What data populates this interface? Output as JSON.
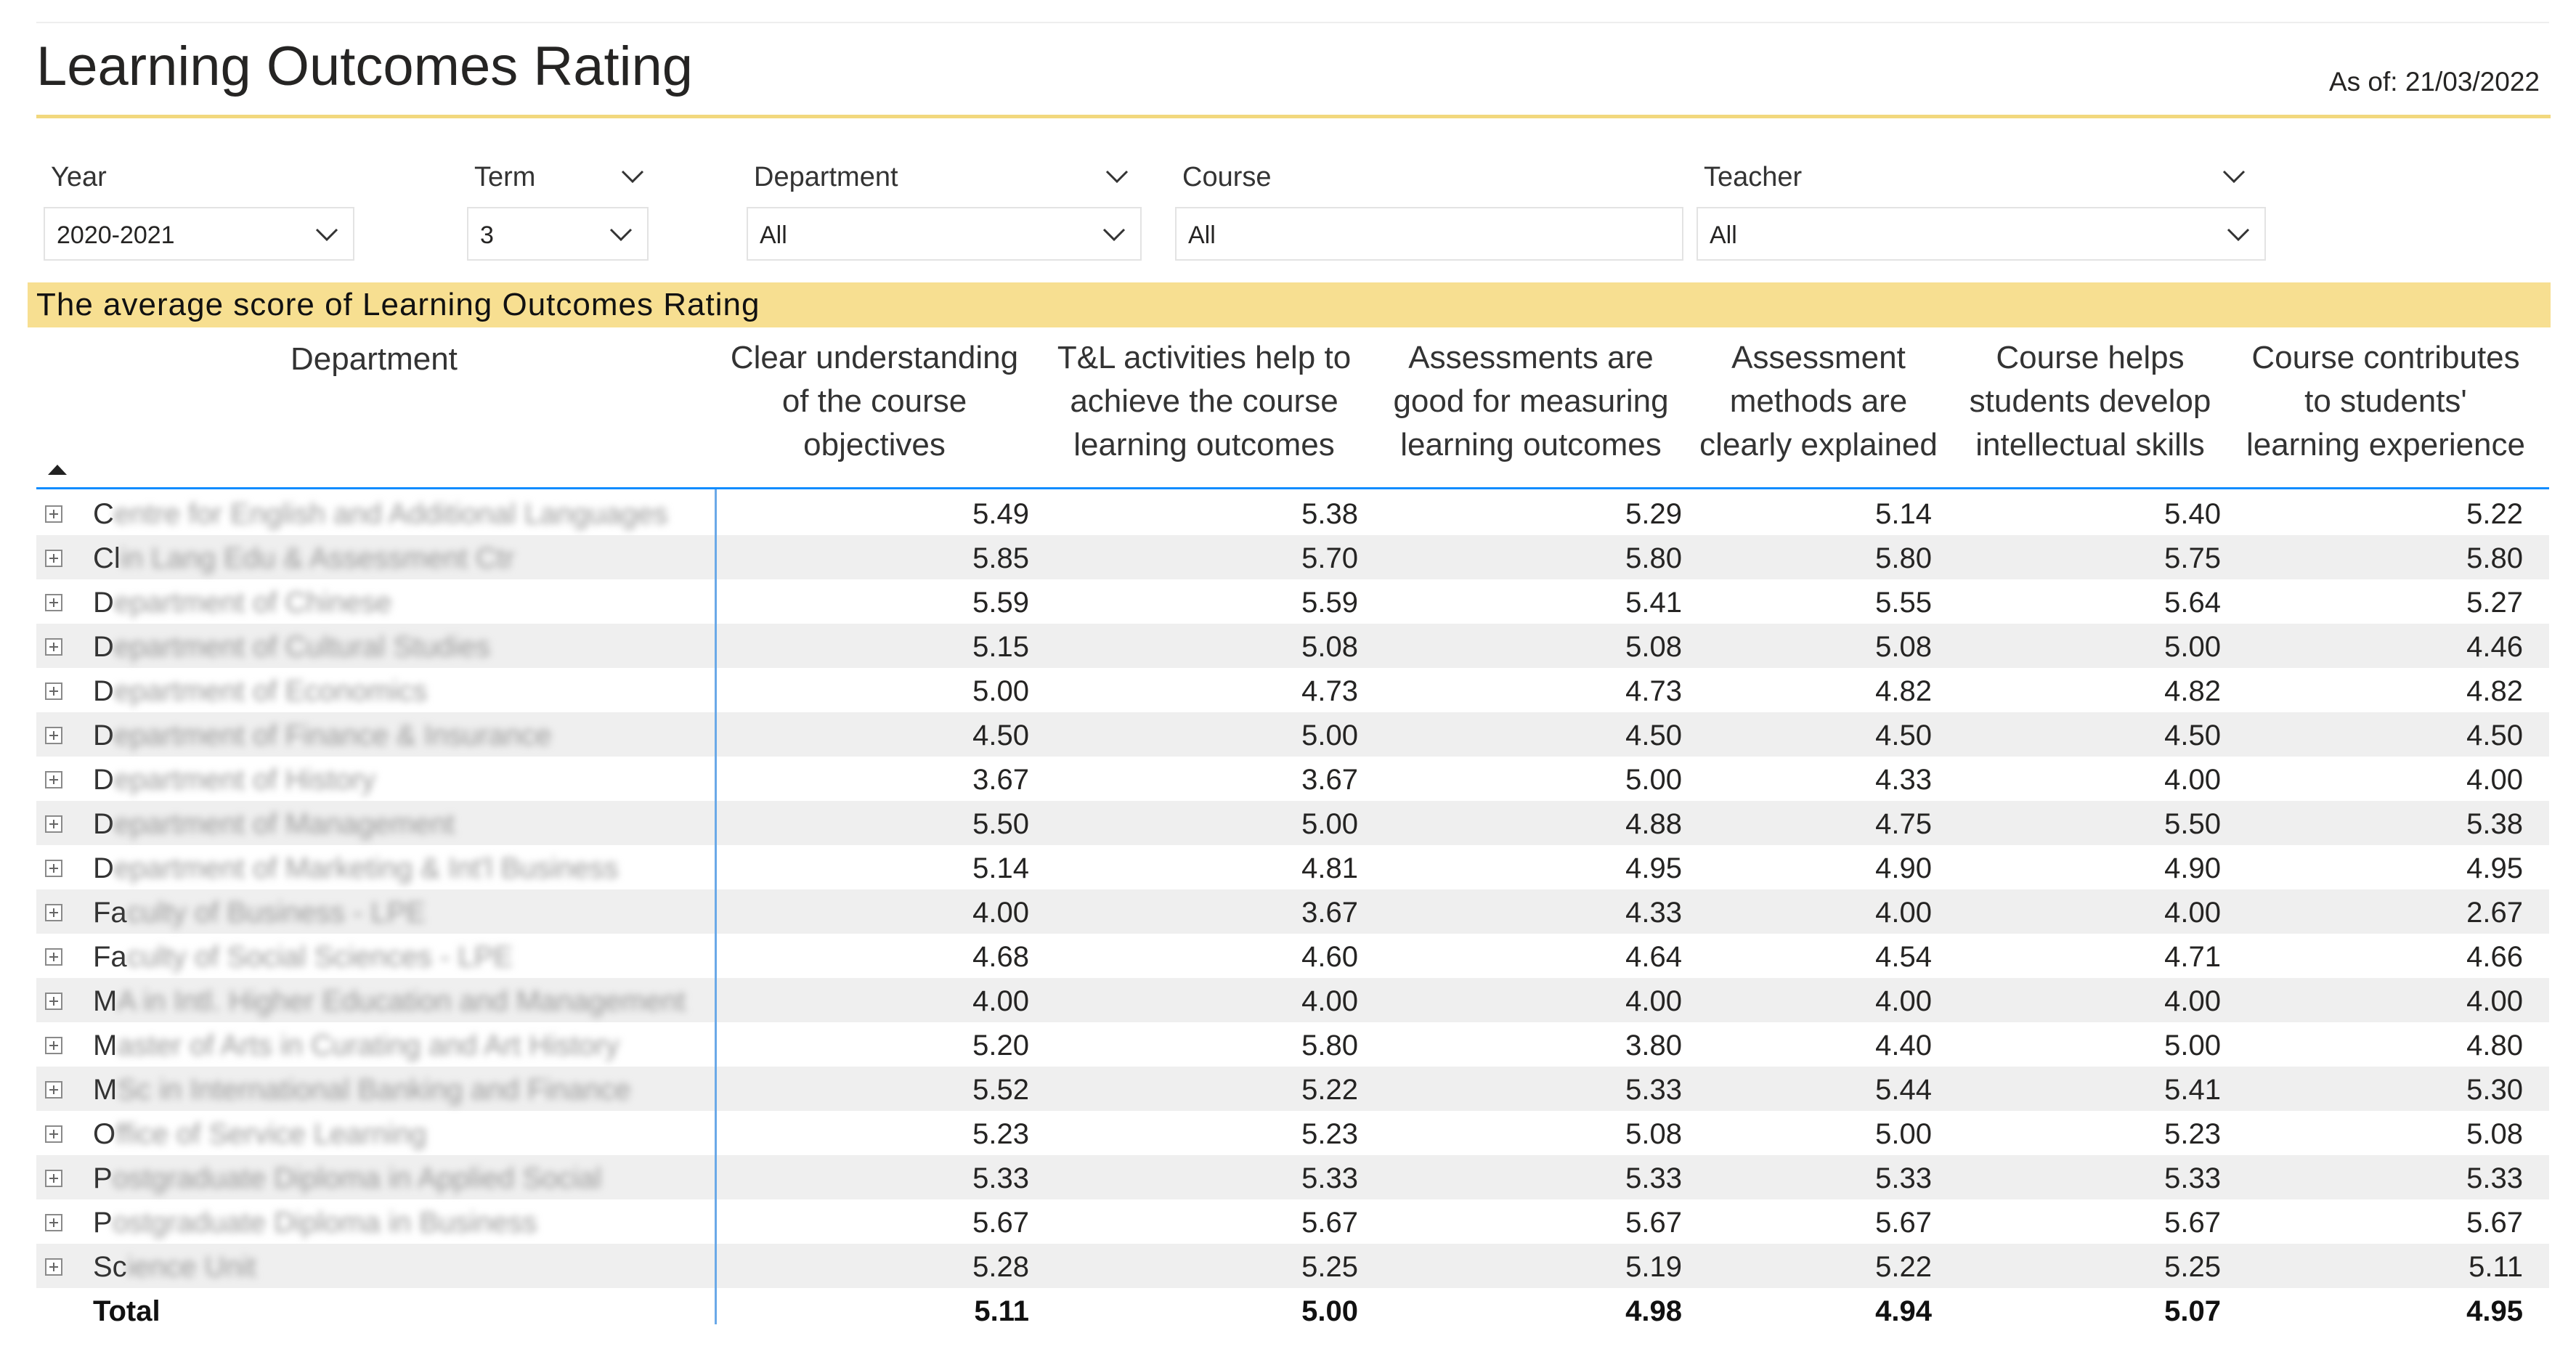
{
  "header": {
    "title": "Learning Outcomes Rating",
    "as_of": "As of: 21/03/2022"
  },
  "filters": {
    "year": {
      "label": "Year",
      "value": "2020-2021"
    },
    "term": {
      "label": "Term",
      "value": "3"
    },
    "department": {
      "label": "Department",
      "value": "All"
    },
    "course": {
      "label": "Course",
      "value": "All"
    },
    "teacher": {
      "label": "Teacher",
      "value": "All"
    }
  },
  "table": {
    "banner": "The average score of Learning Outcomes Rating",
    "department_header": "Department",
    "columns": [
      [
        "Clear understanding",
        "of the course",
        "objectives"
      ],
      [
        "T&L activities help to",
        "achieve the course",
        "learning outcomes"
      ],
      [
        "Assessments are",
        "good for measuring",
        "learning outcomes"
      ],
      [
        "Assessment",
        "methods are",
        "clearly explained"
      ],
      [
        "Course helps",
        "students develop",
        "intellectual skills"
      ],
      [
        "Course contributes",
        "to students'",
        "learning experience"
      ]
    ],
    "rows": [
      {
        "prefix": "C",
        "rest": "entre for English and Additional Languages",
        "values": [
          "5.49",
          "5.38",
          "5.29",
          "5.14",
          "5.40",
          "5.22"
        ]
      },
      {
        "prefix": "Cl",
        "rest": "in Lang Edu & Assessment Ctr",
        "values": [
          "5.85",
          "5.70",
          "5.80",
          "5.80",
          "5.75",
          "5.80"
        ]
      },
      {
        "prefix": "D",
        "rest": "epartment of Chinese",
        "values": [
          "5.59",
          "5.59",
          "5.41",
          "5.55",
          "5.64",
          "5.27"
        ]
      },
      {
        "prefix": "D",
        "rest": "epartment of Cultural Studies",
        "values": [
          "5.15",
          "5.08",
          "5.08",
          "5.08",
          "5.00",
          "4.46"
        ]
      },
      {
        "prefix": "D",
        "rest": "epartment of Economics",
        "values": [
          "5.00",
          "4.73",
          "4.73",
          "4.82",
          "4.82",
          "4.82"
        ]
      },
      {
        "prefix": "D",
        "rest": "epartment of Finance & Insurance",
        "values": [
          "4.50",
          "5.00",
          "4.50",
          "4.50",
          "4.50",
          "4.50"
        ]
      },
      {
        "prefix": "D",
        "rest": "epartment of History",
        "values": [
          "3.67",
          "3.67",
          "5.00",
          "4.33",
          "4.00",
          "4.00"
        ]
      },
      {
        "prefix": "D",
        "rest": "epartment of Management",
        "values": [
          "5.50",
          "5.00",
          "4.88",
          "4.75",
          "5.50",
          "5.38"
        ]
      },
      {
        "prefix": "D",
        "rest": "epartment of Marketing & Int'l Business",
        "values": [
          "5.14",
          "4.81",
          "4.95",
          "4.90",
          "4.90",
          "4.95"
        ]
      },
      {
        "prefix": "Fa",
        "rest": "culty of Business - LPE",
        "values": [
          "4.00",
          "3.67",
          "4.33",
          "4.00",
          "4.00",
          "2.67"
        ]
      },
      {
        "prefix": "Fa",
        "rest": "culty of Social Sciences - LPE",
        "values": [
          "4.68",
          "4.60",
          "4.64",
          "4.54",
          "4.71",
          "4.66"
        ]
      },
      {
        "prefix": "M",
        "rest": "A in Intl. Higher Education and Management",
        "values": [
          "4.00",
          "4.00",
          "4.00",
          "4.00",
          "4.00",
          "4.00"
        ]
      },
      {
        "prefix": "M",
        "rest": "aster of Arts in Curating and Art History",
        "values": [
          "5.20",
          "5.80",
          "3.80",
          "4.40",
          "5.00",
          "4.80"
        ]
      },
      {
        "prefix": "M",
        "rest": "Sc in International Banking and Finance",
        "values": [
          "5.52",
          "5.22",
          "5.33",
          "5.44",
          "5.41",
          "5.30"
        ]
      },
      {
        "prefix": "O",
        "rest": "ffice of Service Learning",
        "values": [
          "5.23",
          "5.23",
          "5.08",
          "5.00",
          "5.23",
          "5.08"
        ]
      },
      {
        "prefix": "P",
        "rest": "ostgraduate Diploma in Applied Social",
        "values": [
          "5.33",
          "5.33",
          "5.33",
          "5.33",
          "5.33",
          "5.33"
        ]
      },
      {
        "prefix": "P",
        "rest": "ostgraduate Diploma in Business",
        "values": [
          "5.67",
          "5.67",
          "5.67",
          "5.67",
          "5.67",
          "5.67"
        ]
      },
      {
        "prefix": "Sc",
        "rest": "ience Unit",
        "values": [
          "5.28",
          "5.25",
          "5.19",
          "5.22",
          "5.25",
          "5.11"
        ]
      }
    ],
    "total": {
      "label": "Total",
      "values": [
        "5.11",
        "5.00",
        "4.98",
        "4.94",
        "5.07",
        "4.95"
      ]
    }
  }
}
